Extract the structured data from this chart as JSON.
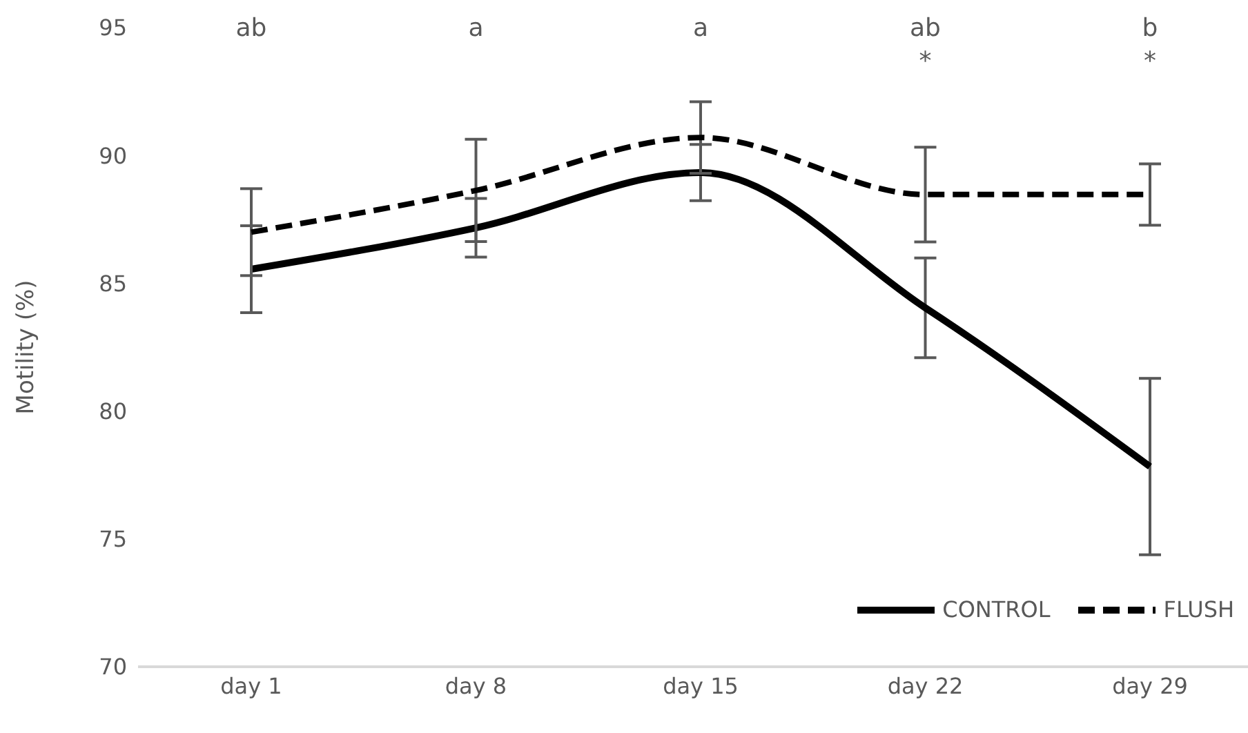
{
  "chart_data": {
    "type": "line",
    "ylabel": "Motility (%)",
    "categories": [
      "day 1",
      "day 8",
      "day 15",
      "day 22",
      "day 29"
    ],
    "series": [
      {
        "name": "CONTROL",
        "color": "#000000",
        "line_style": "solid",
        "values": [
          85.55,
          87.17,
          89.33,
          84.04,
          77.83
        ],
        "errors": [
          1.7,
          1.15,
          1.1,
          1.95,
          3.45
        ]
      },
      {
        "name": "FLUSH",
        "color": "#000000",
        "line_style": "dashed",
        "values": [
          87.0,
          88.63,
          90.7,
          88.47,
          88.47
        ],
        "errors": [
          1.7,
          2.0,
          1.4,
          1.85,
          1.2
        ]
      }
    ],
    "ylim": [
      70,
      95
    ],
    "yticks": [
      70,
      75,
      80,
      85,
      90,
      95
    ],
    "grid": false,
    "legend": "bottom right",
    "annotations": [
      "ab",
      "a",
      "a",
      "ab\n*",
      "b\n*"
    ]
  }
}
